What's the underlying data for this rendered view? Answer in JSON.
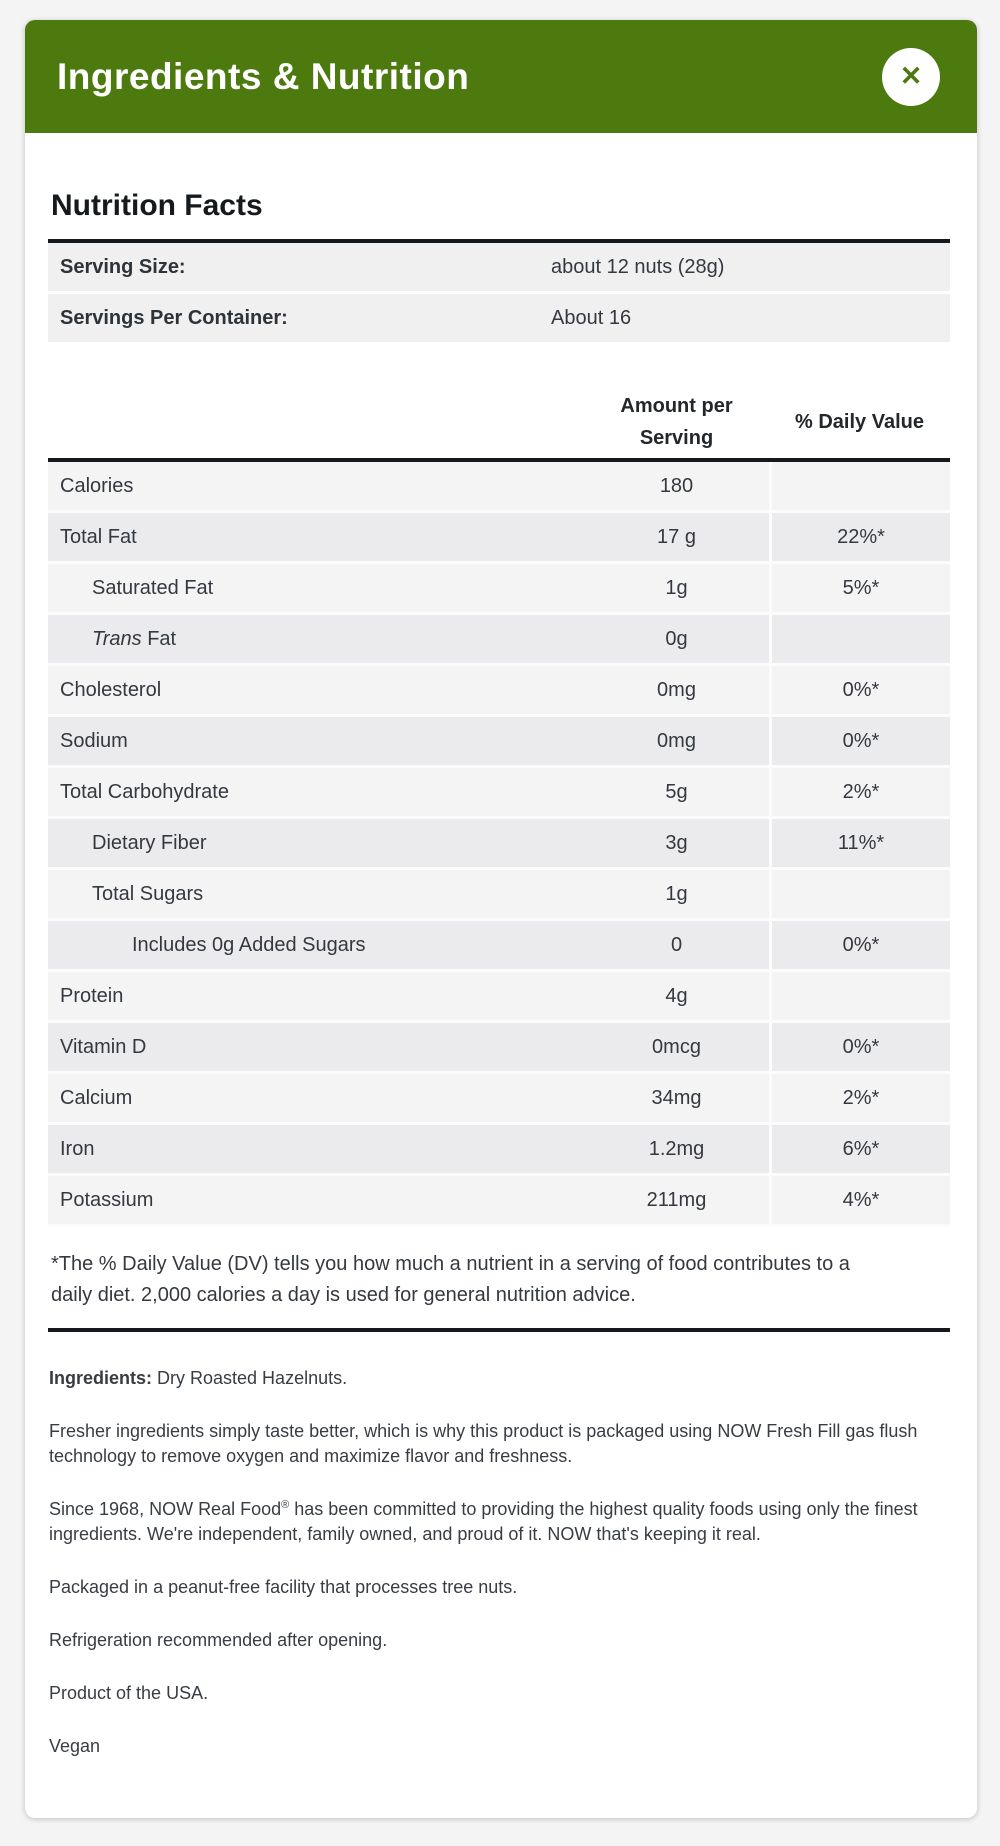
{
  "header": {
    "title": "Ingredients & Nutrition",
    "close_glyph": "✕"
  },
  "nutrition": {
    "heading": "Nutrition Facts",
    "serving_rows": [
      {
        "label": "Serving Size:",
        "value": "about 12 nuts (28g)"
      },
      {
        "label": "Servings Per Container:",
        "value": "About 16"
      }
    ],
    "col_headers": {
      "amount": "Amount per Serving",
      "dv": "% Daily Value"
    },
    "rows": [
      {
        "label": "Calories",
        "amount": "180",
        "dv": ""
      },
      {
        "label": "Total Fat",
        "amount": "17 g",
        "dv": "22%*"
      },
      {
        "label": "Saturated Fat",
        "amount": "1g",
        "dv": "5%*"
      },
      {
        "label_italic": "Trans",
        "label": " Fat",
        "amount": "0g",
        "dv": ""
      },
      {
        "label": "Cholesterol",
        "amount": "0mg",
        "dv": "0%*"
      },
      {
        "label": "Sodium",
        "amount": "0mg",
        "dv": "0%*"
      },
      {
        "label": "Total Carbohydrate",
        "amount": "5g",
        "dv": "2%*"
      },
      {
        "label": "Dietary Fiber",
        "amount": "3g",
        "dv": "11%*"
      },
      {
        "label": "Total Sugars",
        "amount": "1g",
        "dv": ""
      },
      {
        "label": "Includes 0g Added Sugars",
        "amount": "0",
        "dv": "0%*"
      },
      {
        "label": "Protein",
        "amount": "4g",
        "dv": ""
      },
      {
        "label": "Vitamin D",
        "amount": "0mcg",
        "dv": "0%*"
      },
      {
        "label": "Calcium",
        "amount": "34mg",
        "dv": "2%*"
      },
      {
        "label": "Iron",
        "amount": "1.2mg",
        "dv": "6%*"
      },
      {
        "label": "Potassium",
        "amount": "211mg",
        "dv": "4%*"
      }
    ],
    "footnote": "*The % Daily Value (DV) tells you how much a nutrient in a serving of food contributes to a daily diet. 2,000 calories a day is used for general nutrition advice."
  },
  "info": {
    "ingredients_label": "Ingredients:",
    "ingredients_value": " Dry Roasted Hazelnuts.",
    "fresher": "Fresher ingredients simply taste better, which is why this product is packaged using NOW Fresh Fill gas flush technology to remove oxygen and maximize flavor and freshness.",
    "since_pre": "Since 1968, NOW Real Food",
    "since_reg": "®",
    "since_post": " has been committed to providing the highest quality foods using only the finest ingredients. We're independent, family owned, and proud of it. NOW that's keeping it real.",
    "packaged": "Packaged in a peanut-free facility that processes tree nuts.",
    "refrigeration": "Refrigeration recommended after opening.",
    "product": "Product of the USA.",
    "vegan": "Vegan"
  },
  "colors": {
    "header_green": "#4d7a0e",
    "rule_dark": "#15191e",
    "row_light": "#f4f4f5",
    "row_dark": "#ebebed",
    "serving_row": "#f0f0f1",
    "page_background": "#f4f4f5"
  }
}
